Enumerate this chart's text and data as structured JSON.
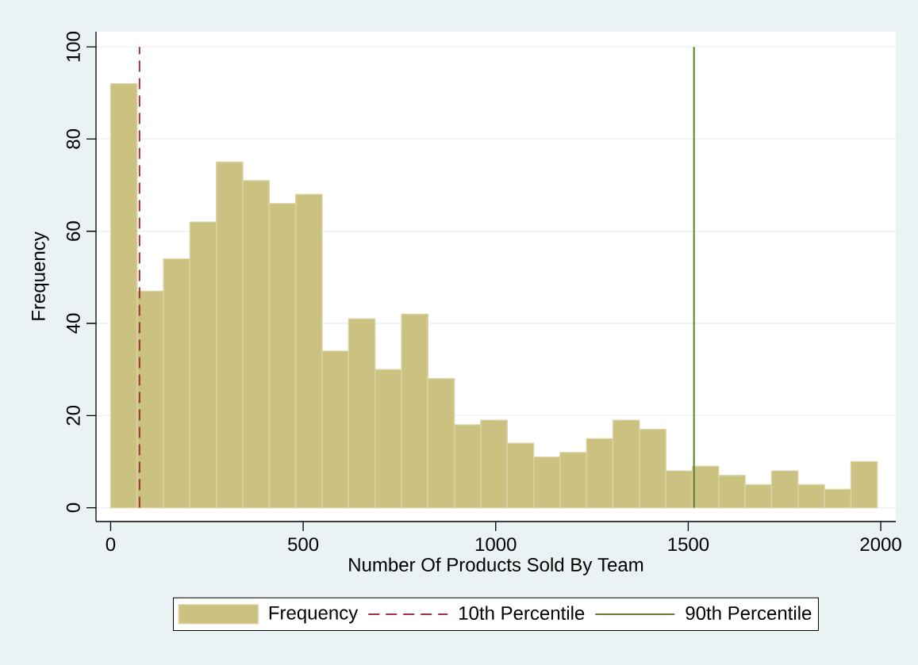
{
  "chart_data": {
    "type": "histogram",
    "xlabel": "Number Of Products Sold By Team",
    "ylabel": "Frequency",
    "bins": [
      0,
      68.7,
      137.3,
      206,
      274.6,
      343.3,
      412,
      480.6,
      549.3,
      617.9,
      686.6,
      755.3,
      823.9,
      892.6,
      961.2,
      1029.9,
      1098.6,
      1167.2,
      1235.9,
      1304.5,
      1373.2,
      1441.9,
      1510.5,
      1579.2,
      1647.8,
      1716.5,
      1785.2,
      1853.8,
      1922.5,
      1991
    ],
    "series": [
      {
        "name": "Frequency",
        "color": "#cbc281",
        "values": [
          92,
          47,
          54,
          62,
          75,
          71,
          66,
          68,
          34,
          41,
          30,
          42,
          28,
          18,
          19,
          14,
          11,
          12,
          15,
          19,
          17,
          8,
          9,
          7,
          5,
          8,
          5,
          4,
          10
        ]
      }
    ],
    "xlim": [
      -38,
      2039
    ],
    "ylim": [
      -3,
      103.3
    ],
    "xticks": [
      0,
      500,
      1000,
      1500,
      2000
    ],
    "yticks": [
      0,
      20,
      40,
      60,
      80,
      100
    ],
    "grid": "y",
    "legend": "bottom",
    "ref_lines": [
      {
        "axis": "x",
        "value": 75,
        "label": "10th Percentile",
        "color": "#a3333a",
        "line_style": "dashed"
      },
      {
        "axis": "x",
        "value": 1515,
        "label": "90th Percentile",
        "color": "#5a7f2a",
        "line_style": "solid"
      }
    ]
  }
}
